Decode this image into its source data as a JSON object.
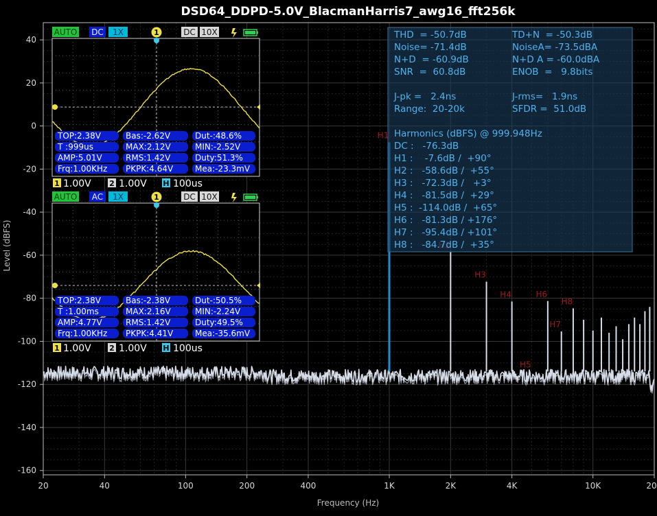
{
  "chart_data": {
    "type": "line",
    "title": "DSD64_DDPD-5.0V_BlacmanHarris7_awg16_fft256k",
    "xlabel": "Frequency (Hz)",
    "ylabel": "Level (dBFS)",
    "x_scale": "log",
    "xlim": [
      20,
      20000
    ],
    "ylim": [
      -162,
      48
    ],
    "grid": true,
    "x_ticks": [
      {
        "v": 20,
        "label": "20"
      },
      {
        "v": 40,
        "label": "40"
      },
      {
        "v": 100,
        "label": "100"
      },
      {
        "v": 200,
        "label": "200"
      },
      {
        "v": 400,
        "label": "400"
      },
      {
        "v": 1000,
        "label": "1K"
      },
      {
        "v": 2000,
        "label": "2K"
      },
      {
        "v": 4000,
        "label": "4K"
      },
      {
        "v": 10000,
        "label": "10K"
      },
      {
        "v": 20000,
        "label": "20K"
      }
    ],
    "y_ticks": [
      40,
      20,
      0,
      -20,
      -40,
      -60,
      -80,
      -100,
      -120,
      -140,
      -160
    ],
    "noise_floor_db": -116,
    "series": [
      {
        "color": "#d6dde8",
        "peaks": [
          {
            "x": 1000,
            "y": -7.6,
            "color": "#1e8fd0"
          },
          {
            "x": 2000,
            "y": -58.6
          },
          {
            "x": 3000,
            "y": -72.3
          },
          {
            "x": 4000,
            "y": -81.5
          },
          {
            "x": 6000,
            "y": -81.3
          },
          {
            "x": 7000,
            "y": -95.4
          },
          {
            "x": 8000,
            "y": -84.7
          },
          {
            "x": 9000,
            "y": -90
          },
          {
            "x": 10000,
            "y": -95
          },
          {
            "x": 11000,
            "y": -89
          },
          {
            "x": 12000,
            "y": -96
          },
          {
            "x": 13000,
            "y": -93
          },
          {
            "x": 14000,
            "y": -99
          },
          {
            "x": 15000,
            "y": -92
          },
          {
            "x": 16000,
            "y": -89
          },
          {
            "x": 17000,
            "y": -92
          },
          {
            "x": 18000,
            "y": -86
          },
          {
            "x": 19000,
            "y": -84
          }
        ]
      }
    ],
    "annotations": [
      {
        "text": "H1",
        "x": 1000,
        "y": -7.6
      },
      {
        "text": "H2",
        "x": 2000,
        "y": -58.6
      },
      {
        "text": "H3",
        "x": 3000,
        "y": -72.3
      },
      {
        "text": "H4",
        "x": 4000,
        "y": -81.5
      },
      {
        "text": "H5",
        "x": 5000,
        "y": -114.0
      },
      {
        "text": "H6",
        "x": 6000,
        "y": -81.3
      },
      {
        "text": "H7",
        "x": 7000,
        "y": -95.4
      },
      {
        "text": "H8",
        "x": 8000,
        "y": -84.7
      }
    ],
    "stats": {
      "lines": [
        [
          "THD  = -50.7dB",
          "TD+N  = -50.3dB"
        ],
        [
          "Noise= -71.4dB",
          "NoiseA= -73.5dBA"
        ],
        [
          "N+D  = -60.9dB",
          "N+D A = -60.0dBA"
        ],
        [
          "SNR  =  60.8dB",
          "ENOB  =   9.8bits"
        ],
        [
          "",
          ""
        ],
        [
          "J-pk =   2.4ns",
          "J-rms=   1.9ns"
        ],
        [
          "Range:  20-20k",
          "SFDR =  51.0dB"
        ],
        [
          "",
          ""
        ],
        [
          "Harmonics (dBFS) @ 999.948Hz",
          ""
        ],
        [
          "DC :   -76.3dB",
          ""
        ],
        [
          "H1 :    -7.6dB /  +90°",
          ""
        ],
        [
          "H2 :   -58.6dB /  +55°",
          ""
        ],
        [
          "H3 :   -72.3dB /   +3°",
          ""
        ],
        [
          "H4 :   -81.5dB /  +29°",
          ""
        ],
        [
          "H5 :  -114.0dB /  +65°",
          ""
        ],
        [
          "H6 :   -81.3dB / +176°",
          ""
        ],
        [
          "H7 :   -95.4dB / +101°",
          ""
        ],
        [
          "H8 :   -84.7dB /  +35°",
          ""
        ]
      ]
    }
  },
  "scopes": [
    {
      "mode": "AUTO",
      "coupling": "DC",
      "probe1": "1X",
      "channel_marker": "1",
      "ch2_coupling": "DC",
      "probe2": "10X",
      "colors": {
        "auto": "#21c43a",
        "wave": "#f0e040",
        "trigger": "#3cc8e8",
        "panel": "#0a1ed0"
      },
      "wave_offset": 0.0,
      "meas": [
        [
          "TOP:2.38V",
          "Bas:-2.62V",
          "Dut-:48.6%"
        ],
        [
          "T :999us",
          "MAX:2.12V",
          "MIN:-2.52V"
        ],
        [
          "AMP:5.01V",
          "RMS:1.42V",
          "Duty:51.3%"
        ],
        [
          "Frq:1.00KHz",
          "PKPK:4.64V",
          "Mea:-23.3mV"
        ]
      ],
      "footer": {
        "ch1_num": "1",
        "ch1": "1.00V",
        "ch2_num": "2",
        "ch2": "1.00V",
        "h_num": "H",
        "h": "100us"
      }
    },
    {
      "mode": "AUTO",
      "coupling": "AC",
      "probe1": "1X",
      "channel_marker": "1",
      "ch2_coupling": "DC",
      "probe2": "10X",
      "colors": {
        "auto": "#21c43a",
        "wave": "#f0e040",
        "trigger": "#3cc8e8",
        "panel": "#0a1ed0"
      },
      "wave_offset": 0.0,
      "meas": [
        [
          "TOP:2.38V",
          "Bas:-2.38V",
          "Dut-:50.5%"
        ],
        [
          "T :1.00ms",
          "MAX:2.16V",
          "MIN:-2.24V"
        ],
        [
          "AMP:4.77V",
          "RMS:1.42V",
          "Duty:49.5%"
        ],
        [
          "Frq:1.00KHz",
          "PKPK:4.41V",
          "Mea:-35.6mV"
        ]
      ],
      "footer": {
        "ch1_num": "1",
        "ch1": "1.00V",
        "ch2_num": "2",
        "ch2": "1.00V",
        "h_num": "H",
        "h": "100us"
      }
    }
  ]
}
